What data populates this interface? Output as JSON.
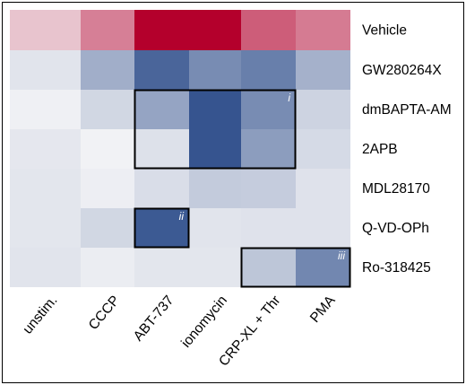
{
  "chart_data": {
    "type": "heatmap",
    "columns": [
      "unstim.",
      "CCCP",
      "ABT-737",
      "ionomycin",
      "CRP-XL + Thr",
      "PMA"
    ],
    "rows": [
      "Vehicle",
      "GW280264X",
      "dmBAPTA-AM",
      "2APB",
      "MDL28170",
      "Q-VD-OPh",
      "Ro-318425"
    ],
    "values": [
      [
        0.2,
        0.48,
        1.0,
        1.0,
        0.62,
        0.5
      ],
      [
        -0.1,
        -0.42,
        -0.85,
        -0.62,
        -0.7,
        -0.4
      ],
      [
        -0.03,
        -0.18,
        -0.48,
        -0.95,
        -0.62,
        -0.2
      ],
      [
        -0.08,
        -0.02,
        -0.12,
        -0.95,
        -0.52,
        -0.16
      ],
      [
        -0.09,
        -0.04,
        -0.14,
        -0.25,
        -0.24,
        -0.11
      ],
      [
        -0.09,
        -0.18,
        -0.92,
        -0.1,
        -0.11,
        -0.11
      ],
      [
        -0.1,
        -0.05,
        -0.09,
        -0.09,
        -0.28,
        -0.65
      ]
    ],
    "color_scale": {
      "negative": "#2c4c8a",
      "zero": "#f5f5f7",
      "positive": "#b4002c"
    },
    "highlight_boxes": [
      {
        "label": "i",
        "rows": [
          2,
          3
        ],
        "cols": [
          2,
          4
        ]
      },
      {
        "label": "ii",
        "rows": [
          5,
          5
        ],
        "cols": [
          2,
          2
        ]
      },
      {
        "label": "iii",
        "rows": [
          6,
          6
        ],
        "cols": [
          4,
          5
        ]
      }
    ]
  }
}
